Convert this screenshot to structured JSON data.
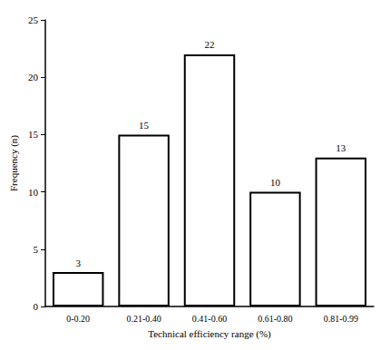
{
  "chart_data": {
    "type": "bar",
    "categories": [
      "0-0.20",
      "0.21-0.40",
      "0.41-0.60",
      "0.61-0.80",
      "0.81-0.99"
    ],
    "values": [
      3,
      15,
      22,
      10,
      13
    ],
    "color": "#ffffff",
    "xlabel": "Technical efficiency range (%)",
    "ylabel": "Frequency (n)",
    "ylim": [
      0,
      25
    ],
    "yticks": [
      0,
      5,
      10,
      15,
      20,
      25
    ],
    "grid": false,
    "data_labels": true
  }
}
